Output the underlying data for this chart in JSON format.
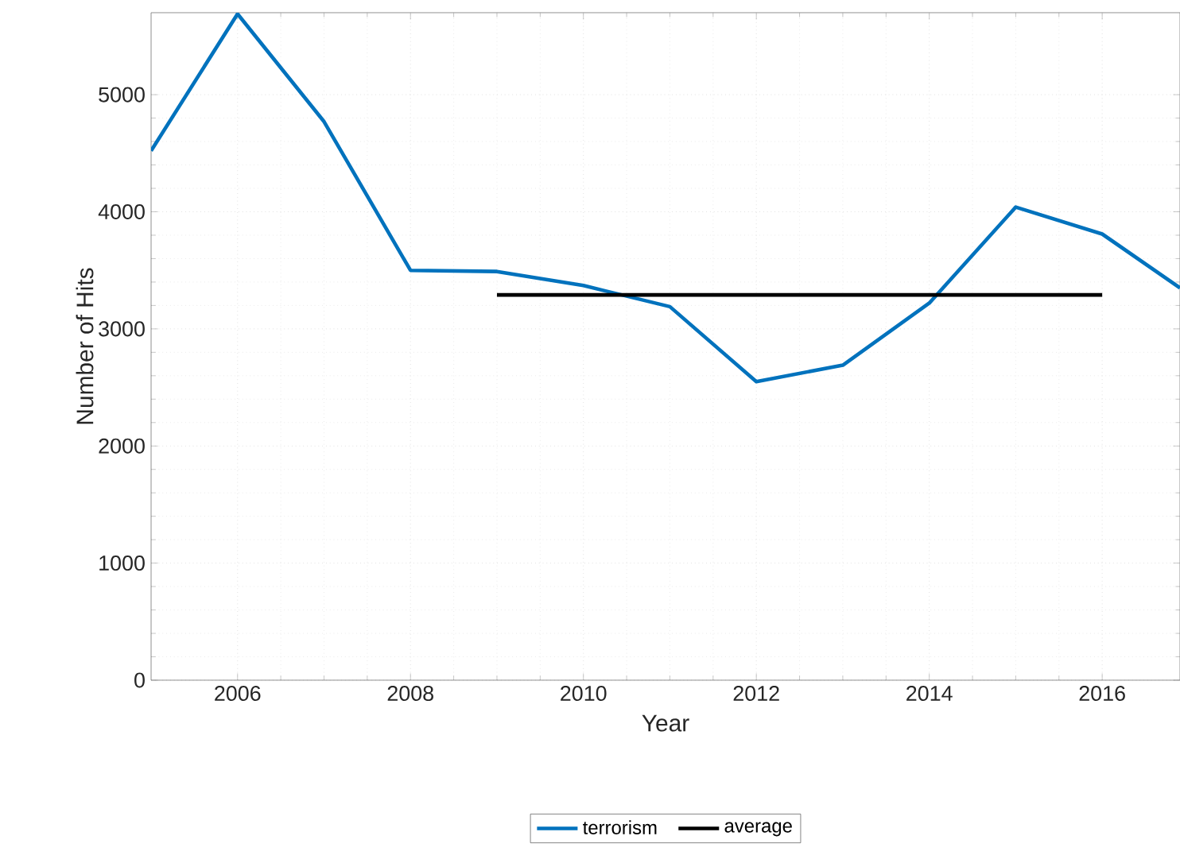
{
  "chart_data": {
    "type": "line",
    "xlabel": "Year",
    "ylabel": "Number of Hits",
    "series": [
      {
        "name": "terrorism",
        "color": "#0072bd",
        "x": [
          2005,
          2006,
          2007,
          2008,
          2009,
          2010,
          2011,
          2012,
          2013,
          2014,
          2015,
          2016,
          2016.9
        ],
        "values": [
          4520,
          5690,
          4770,
          3500,
          3490,
          3370,
          3190,
          2550,
          2690,
          3220,
          4040,
          3810,
          3350
        ]
      },
      {
        "name": "average",
        "color": "#000000",
        "x": [
          2009,
          2016
        ],
        "values": [
          3290,
          3290
        ]
      }
    ],
    "xlim": [
      2005,
      2016.9
    ],
    "ylim": [
      0,
      5700
    ],
    "xticks": [
      2006,
      2008,
      2010,
      2012,
      2014,
      2016
    ],
    "yticks": [
      0,
      1000,
      2000,
      3000,
      4000,
      5000
    ],
    "grid": true,
    "legend": "bottom",
    "line_style": "solid"
  }
}
